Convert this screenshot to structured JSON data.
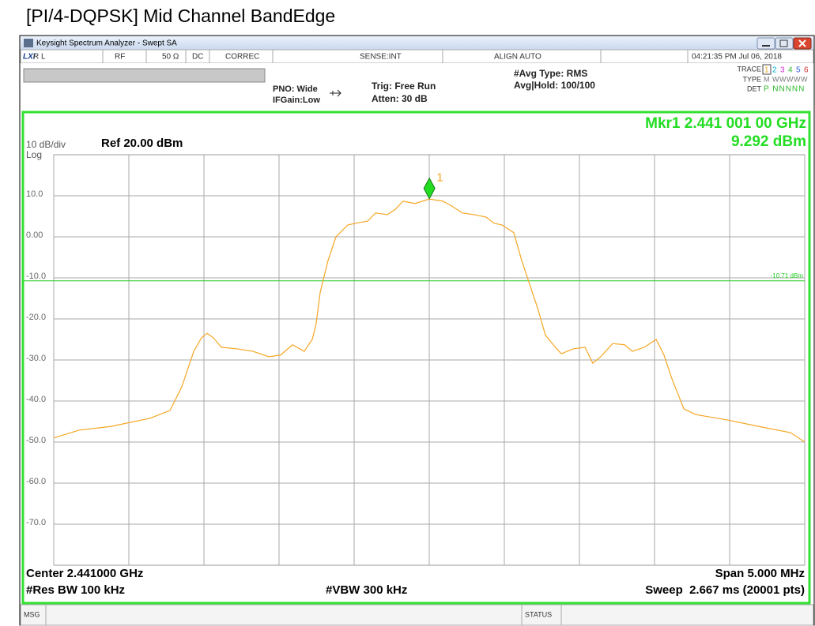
{
  "page_title": "[PI/4-DQPSK] Mid Channel BandEdge",
  "window_title": "Keysight Spectrum Analyzer - Swept SA",
  "logo": "LXI",
  "status_bar": [
    "R L",
    "RF",
    "50 Ω",
    "DC",
    "CORREC",
    "SENSE:INT",
    "ALIGN AUTO",
    "04:21:35 PM Jul 06, 2018"
  ],
  "settings": {
    "pno": "PNO: Wide",
    "ifgain": "IFGain:Low",
    "trig": "Trig: Free Run",
    "atten": "Atten: 30 dB",
    "avg_type": "#Avg Type: RMS",
    "avg_hold": "Avg|Hold: 100/100"
  },
  "trace_panel": {
    "trace_label": "TRACE",
    "trace_numbers": [
      "1",
      "2",
      "3",
      "4",
      "5",
      "6"
    ],
    "type_label": "TYPE",
    "type_value": "M WWWWW",
    "det_label": "DET",
    "det_value": "P NNNNN"
  },
  "chart_data": {
    "type": "line",
    "scale_label": "10 dB/div",
    "log_label": "Log",
    "ref_label": "Ref 20.00 dBm",
    "marker_readout": [
      "Mkr1 2.441 001 00 GHz",
      "9.292 dBm"
    ],
    "xlim": [
      2.4385,
      2.4435
    ],
    "xticks": [
      2.4385,
      2.439,
      2.4395,
      2.44,
      2.4405,
      2.441,
      2.4415,
      2.442,
      2.4425,
      2.443,
      2.4435
    ],
    "ylim": [
      -80,
      20
    ],
    "yticks": [
      {
        "value": 10,
        "label": "10.0"
      },
      {
        "value": 0,
        "label": "0.00"
      },
      {
        "value": -10,
        "label": "-10.0"
      },
      {
        "value": -20,
        "label": "-20.0"
      },
      {
        "value": -30,
        "label": "-30.0"
      },
      {
        "value": -40,
        "label": "-40.0"
      },
      {
        "value": -50,
        "label": "-50.0"
      },
      {
        "value": -60,
        "label": "-60.0"
      },
      {
        "value": -70,
        "label": "-70.0"
      }
    ],
    "grid": true,
    "color": "#f5a623",
    "x": [
      2.4385,
      2.438668,
      2.438879,
      2.439142,
      2.439274,
      2.439353,
      2.439432,
      2.439484,
      2.439521,
      2.439563,
      2.439616,
      2.439721,
      2.439826,
      2.439932,
      2.440011,
      2.440089,
      2.440168,
      2.440221,
      2.440247,
      2.440274,
      2.440326,
      2.440379,
      2.440458,
      2.440537,
      2.440589,
      2.440642,
      2.440721,
      2.440774,
      2.440826,
      2.440905,
      2.441,
      2.441089,
      2.441142,
      2.441221,
      2.4413,
      2.441379,
      2.441432,
      2.441484,
      2.441563,
      2.441616,
      2.441668,
      2.441721,
      2.441774,
      2.441826,
      2.441879,
      2.441958,
      2.442037,
      2.442089,
      2.442142,
      2.442221,
      2.4423,
      2.442353,
      2.442432,
      2.442511,
      2.442563,
      2.442616,
      2.442695,
      2.442774,
      2.442984,
      2.443195,
      2.443405,
      2.4435
    ],
    "values": [
      -49.0,
      -47.1,
      -46.2,
      -44.2,
      -42.3,
      -36.5,
      -27.9,
      -24.6,
      -23.5,
      -24.6,
      -26.9,
      -27.3,
      -27.9,
      -29.2,
      -28.8,
      -26.3,
      -27.9,
      -25.0,
      -21.2,
      -13.5,
      -5.8,
      0.0,
      2.9,
      3.5,
      3.8,
      5.8,
      5.4,
      6.7,
      8.7,
      8.1,
      9.2,
      8.7,
      7.7,
      5.8,
      5.4,
      4.8,
      3.3,
      2.9,
      1.0,
      -5.8,
      -11.5,
      -17.3,
      -24.0,
      -26.3,
      -28.5,
      -27.3,
      -26.9,
      -30.8,
      -29.2,
      -26.0,
      -26.3,
      -27.9,
      -26.9,
      -25.0,
      -28.8,
      -34.6,
      -41.9,
      -43.3,
      -44.6,
      -46.2,
      -47.7,
      -50.0
    ],
    "display_line": {
      "value": -10.71,
      "label": "-10.71 dBm",
      "color": "#22cc22"
    },
    "marker": {
      "label": "1",
      "x": 2.441001,
      "value": 9.292,
      "color": "#22dd22"
    }
  },
  "footer": {
    "center": "Center 2.441000 GHz",
    "span": "Span 5.000 MHz",
    "rbw": "#Res BW 100 kHz",
    "vbw": "#VBW 300 kHz",
    "sweep": "Sweep  2.667 ms (20001 pts)"
  },
  "bottom_bar": [
    "MSG",
    "STATUS"
  ]
}
